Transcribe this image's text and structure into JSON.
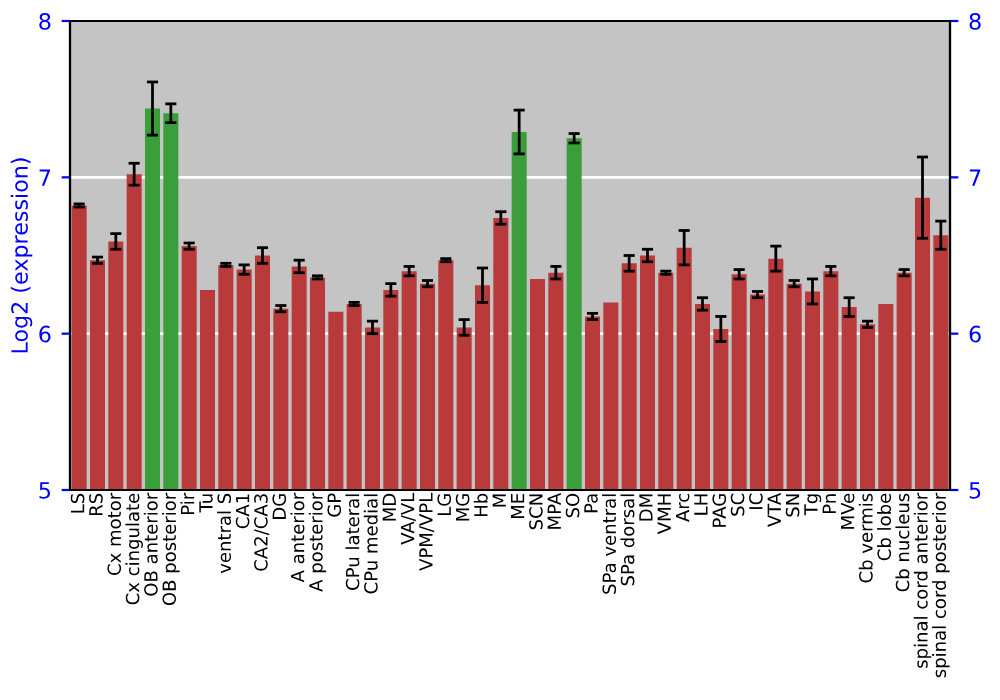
{
  "chart_data": {
    "type": "bar",
    "ylabel": "Log2 (expression)",
    "categories": [
      "LS",
      "RS",
      "Cx motor",
      "Cx cingulate",
      "OB anterior",
      "OB posterior",
      "Pir",
      "Tu",
      "ventral S",
      "CA1",
      "CA2/CA3",
      "DG",
      "A anterior",
      "A posterior",
      "GP",
      "CPu lateral",
      "CPu medial",
      "MD",
      "VA/VL",
      "VPM/VPL",
      "LG",
      "MG",
      "Hb",
      "M",
      "ME",
      "SCN",
      "MPA",
      "SO",
      "Pa",
      "SPa ventral",
      "SPa dorsal",
      "DM",
      "VMH",
      "Arc",
      "LH",
      "PAG",
      "SC",
      "IC",
      "VTA",
      "SN",
      "Tg",
      "Pn",
      "MVe",
      "Cb vermis",
      "Cb lobe",
      "Cb nucleus",
      "spinal cord anterior",
      "spinal cord posterior"
    ],
    "values": [
      6.82,
      6.47,
      6.59,
      7.02,
      7.44,
      7.41,
      6.56,
      6.28,
      6.44,
      6.41,
      6.5,
      6.16,
      6.43,
      6.36,
      6.14,
      6.19,
      6.04,
      6.28,
      6.4,
      6.32,
      6.47,
      6.04,
      6.31,
      6.74,
      7.29,
      6.35,
      6.39,
      7.25,
      6.11,
      6.2,
      6.45,
      6.5,
      6.39,
      6.55,
      6.19,
      6.03,
      6.38,
      6.25,
      6.48,
      6.32,
      6.27,
      6.4,
      6.17,
      6.06,
      6.19,
      6.39,
      6.87,
      6.63
    ],
    "errors": [
      0.01,
      0.02,
      0.05,
      0.07,
      0.17,
      0.06,
      0.02,
      null,
      0.01,
      0.03,
      0.05,
      0.02,
      0.04,
      0.01,
      null,
      0.01,
      0.04,
      0.04,
      0.03,
      0.02,
      0.01,
      0.05,
      0.11,
      0.04,
      0.14,
      null,
      0.04,
      0.03,
      0.02,
      null,
      0.05,
      0.04,
      0.01,
      0.11,
      0.04,
      0.08,
      0.03,
      0.02,
      0.08,
      0.02,
      0.08,
      0.03,
      0.06,
      0.02,
      null,
      0.02,
      0.26,
      0.09
    ],
    "colors": [
      "#b83a3a",
      "#b83a3a",
      "#b83a3a",
      "#b83a3a",
      "#3a9e3a",
      "#3a9e3a",
      "#b83a3a",
      "#b83a3a",
      "#b83a3a",
      "#b83a3a",
      "#b83a3a",
      "#b83a3a",
      "#b83a3a",
      "#b83a3a",
      "#b83a3a",
      "#b83a3a",
      "#b83a3a",
      "#b83a3a",
      "#b83a3a",
      "#b83a3a",
      "#b83a3a",
      "#b83a3a",
      "#b83a3a",
      "#b83a3a",
      "#3a9e3a",
      "#b83a3a",
      "#b83a3a",
      "#3a9e3a",
      "#b83a3a",
      "#b83a3a",
      "#b83a3a",
      "#b83a3a",
      "#b83a3a",
      "#b83a3a",
      "#b83a3a",
      "#b83a3a",
      "#b83a3a",
      "#b83a3a",
      "#b83a3a",
      "#b83a3a",
      "#b83a3a",
      "#b83a3a",
      "#b83a3a",
      "#b83a3a",
      "#b83a3a",
      "#b83a3a",
      "#b83a3a",
      "#b83a3a"
    ],
    "ylim": [
      5,
      8
    ],
    "yticks": [
      5,
      6,
      7,
      8
    ],
    "y2lim": [
      5,
      8
    ],
    "y2ticks": [
      5,
      6,
      7,
      8
    ],
    "grid": "y"
  }
}
